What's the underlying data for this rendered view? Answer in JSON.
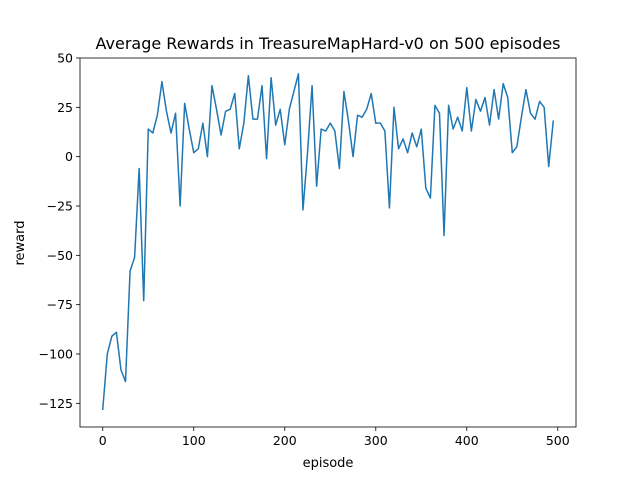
{
  "chart_data": {
    "type": "line",
    "title": "Average Rewards in TreasureMapHard-v0 on 500 episodes",
    "xlabel": "episode",
    "ylabel": "reward",
    "xlim": [
      -25,
      520
    ],
    "ylim": [
      -137,
      50
    ],
    "xticks": [
      0,
      100,
      200,
      300,
      400,
      500
    ],
    "yticks": [
      -125,
      -100,
      -75,
      -50,
      -25,
      0,
      25,
      50
    ],
    "ytick_labels": [
      "−125",
      "−100",
      "−75",
      "−50",
      "−25",
      "0",
      "25",
      "50"
    ],
    "grid": false,
    "line_color": "#1f77b4",
    "series": [
      {
        "x": [
          0,
          5,
          10,
          15,
          20,
          25,
          30,
          35,
          40,
          45,
          50,
          55,
          60,
          65,
          70,
          75,
          80,
          85,
          90,
          95,
          100,
          105,
          110,
          115,
          120,
          125,
          130,
          135,
          140,
          145,
          150,
          155,
          160,
          165,
          170,
          175,
          180,
          185,
          190,
          195,
          200,
          205,
          210,
          215,
          220,
          225,
          230,
          235,
          240,
          245,
          250,
          255,
          260,
          265,
          270,
          275,
          280,
          285,
          290,
          295,
          300,
          305,
          310,
          315,
          320,
          325,
          330,
          335,
          340,
          345,
          350,
          355,
          360,
          365,
          370,
          375,
          380,
          385,
          390,
          395,
          400,
          405,
          410,
          415,
          420,
          425,
          430,
          435,
          440,
          445,
          450,
          455,
          460,
          465,
          470,
          475,
          480,
          485,
          490,
          495
        ],
        "values": [
          -128,
          -100,
          -91,
          -89,
          -108,
          -114,
          -58,
          -51,
          -6,
          -73,
          14,
          12,
          21,
          38,
          23,
          12,
          22,
          -25,
          27,
          14,
          2,
          4,
          17,
          0,
          36,
          24,
          11,
          23,
          24,
          32,
          4,
          17,
          41,
          19,
          19,
          36,
          -1,
          40,
          16,
          24,
          6,
          24,
          33,
          42,
          -27,
          2,
          36,
          -15,
          14,
          13,
          17,
          13,
          -6,
          33,
          18,
          0,
          21,
          20,
          24,
          32,
          17,
          17,
          13,
          -26,
          25,
          4,
          9,
          2,
          12,
          5,
          14,
          -16,
          -21,
          26,
          22,
          -40,
          26,
          14,
          20,
          13,
          35,
          13,
          29,
          23,
          30,
          16,
          34,
          19,
          37,
          30,
          2,
          5,
          20,
          34,
          22,
          19,
          28,
          25,
          -5,
          18
        ]
      }
    ]
  }
}
